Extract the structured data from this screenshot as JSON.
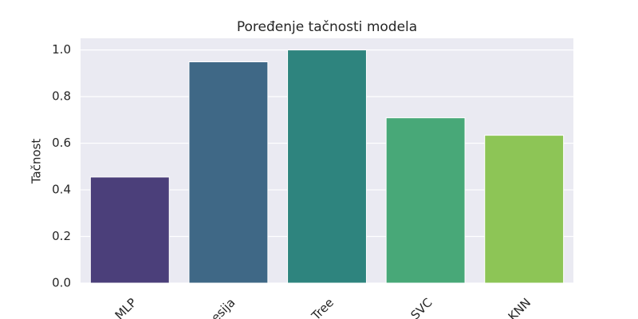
{
  "chart_data": {
    "type": "bar",
    "title": "Poređenje tačnosti modela",
    "y_label": "Tačnost",
    "categories": [
      "MLP",
      "esija",
      "Tree",
      "SVC",
      "KNN"
    ],
    "values": [
      0.455,
      0.949,
      1.0,
      0.709,
      0.634
    ],
    "colors": [
      "#4b3f7a",
      "#3f6886",
      "#2e847e",
      "#48a878",
      "#8dc556"
    ],
    "ylim": [
      0,
      1.05
    ],
    "yticks": [
      {
        "value": 0,
        "label": "0.0"
      },
      {
        "value": 0.2,
        "label": "0.2"
      },
      {
        "value": 0.4,
        "label": "0.4"
      },
      {
        "value": 0.6,
        "label": "0.6"
      },
      {
        "value": 0.8,
        "label": "0.8"
      },
      {
        "value": 1.0,
        "label": "1.0"
      }
    ],
    "grid": true
  }
}
